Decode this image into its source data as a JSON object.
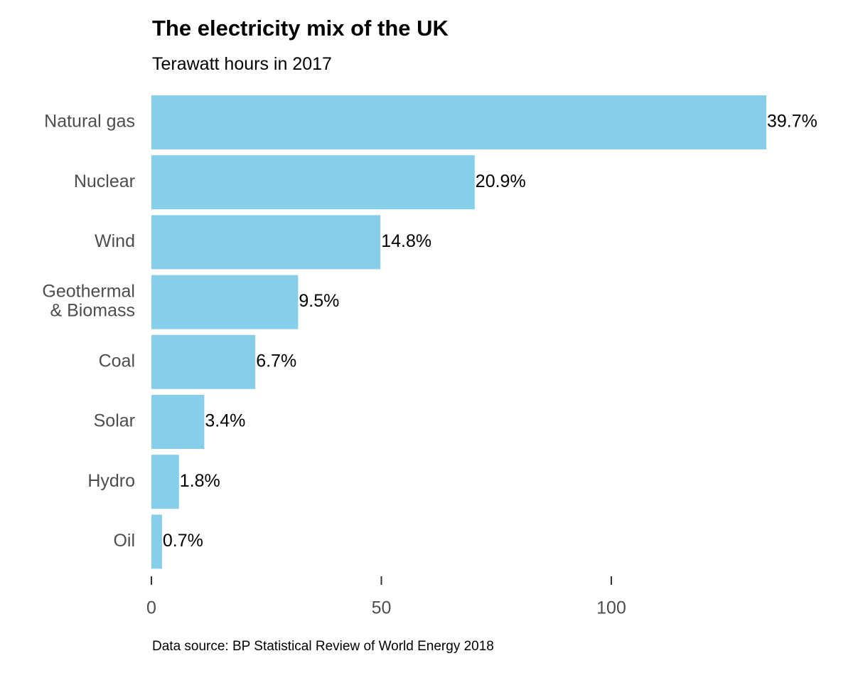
{
  "chart_data": {
    "type": "bar",
    "orientation": "horizontal",
    "title": "The electricity mix of the UK",
    "subtitle": "Terawatt hours in 2017",
    "source": "Data source: BP Statistical Review of World Energy 2018",
    "categories": [
      [
        "Natural gas"
      ],
      [
        "Nuclear"
      ],
      [
        "Wind"
      ],
      [
        "Geothermal",
        "& Biomass"
      ],
      [
        "Coal"
      ],
      [
        "Solar"
      ],
      [
        "Hydro"
      ],
      [
        "Oil"
      ]
    ],
    "values": [
      133.7,
      70.3,
      49.8,
      31.9,
      22.6,
      11.5,
      6.0,
      2.3
    ],
    "data_labels": [
      "39.7%",
      "20.9%",
      "14.8%",
      "9.5%",
      "6.7%",
      "3.4%",
      "1.8%",
      "0.7%"
    ],
    "xlim": [
      0,
      140
    ],
    "xticks": [
      0,
      50,
      100
    ],
    "xtick_labels": [
      "0",
      "50",
      "100"
    ],
    "xlabel": "",
    "ylabel": "",
    "grid": false,
    "legend": "none",
    "bar_color": "#87ceeb",
    "category_label_color": "#4d4d4d",
    "value_label_color": "#000000",
    "tick_color": "#333333"
  }
}
